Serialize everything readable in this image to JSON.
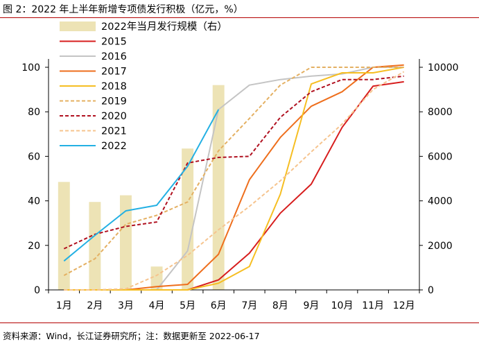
{
  "title": "图 2：2022 年上半年新增专项债发行积极（亿元，%）",
  "source": "资料来源：Wind，长江证券研究所；注：数据更新至 2022-06-17",
  "chart_data": {
    "type": "line",
    "categories": [
      "1月",
      "2月",
      "3月",
      "4月",
      "5月",
      "6月",
      "7月",
      "8月",
      "9月",
      "10月",
      "11月",
      "12月"
    ],
    "ylim_left": [
      0,
      100
    ],
    "yticks_left": [
      0,
      20,
      40,
      60,
      80,
      100
    ],
    "ylim_right": [
      0,
      10000
    ],
    "yticks_right": [
      0,
      2000,
      4000,
      6000,
      8000,
      10000
    ],
    "bars": {
      "name": "2022年当月发行规模（右）",
      "color": "#ede3b5",
      "axis": "right",
      "values": [
        4850,
        3950,
        4250,
        1050,
        6350,
        9200,
        null,
        null,
        null,
        null,
        null,
        null
      ]
    },
    "series": [
      {
        "name": "2015",
        "color": "#d71d1d",
        "dash": "solid",
        "values": [
          0,
          0,
          0,
          0,
          0,
          4.5,
          16.5,
          34.5,
          47.5,
          73,
          91.5,
          93.5
        ]
      },
      {
        "name": "2016",
        "color": "#c4c4c4",
        "dash": "solid",
        "values": [
          0,
          0,
          0,
          0,
          17.5,
          81,
          92,
          94.5,
          96,
          97,
          100,
          100
        ]
      },
      {
        "name": "2017",
        "color": "#ee6e1c",
        "dash": "solid",
        "values": [
          0,
          0,
          0,
          1.5,
          2.5,
          16,
          49.5,
          68.5,
          82.5,
          89,
          100,
          101
        ]
      },
      {
        "name": "2018",
        "color": "#f6be22",
        "dash": "solid",
        "values": [
          0,
          0,
          0,
          0,
          0,
          3,
          10.5,
          43,
          92.5,
          97.5,
          97.5,
          100
        ]
      },
      {
        "name": "2019",
        "color": "#e4b062",
        "dash": "dashed",
        "values": [
          6.5,
          14,
          29.5,
          33.5,
          39.5,
          62.5,
          77,
          92,
          100,
          100,
          100,
          100
        ]
      },
      {
        "name": "2020",
        "color": "#b0101f",
        "dash": "dashed",
        "values": [
          18.5,
          25,
          28.5,
          30.5,
          57,
          59.5,
          60,
          77.5,
          89,
          94.5,
          94.5,
          96
        ]
      },
      {
        "name": "2021",
        "color": "#f6c48e",
        "dash": "dashed",
        "values": [
          0,
          0,
          0.5,
          6.5,
          15.5,
          27,
          37.5,
          49,
          62,
          74.5,
          90,
          98
        ]
      },
      {
        "name": "2022",
        "color": "#23b0e3",
        "dash": "solid",
        "values": [
          13,
          24.5,
          35.5,
          38,
          55.5,
          81,
          null,
          null,
          null,
          null,
          null,
          null
        ]
      }
    ]
  }
}
